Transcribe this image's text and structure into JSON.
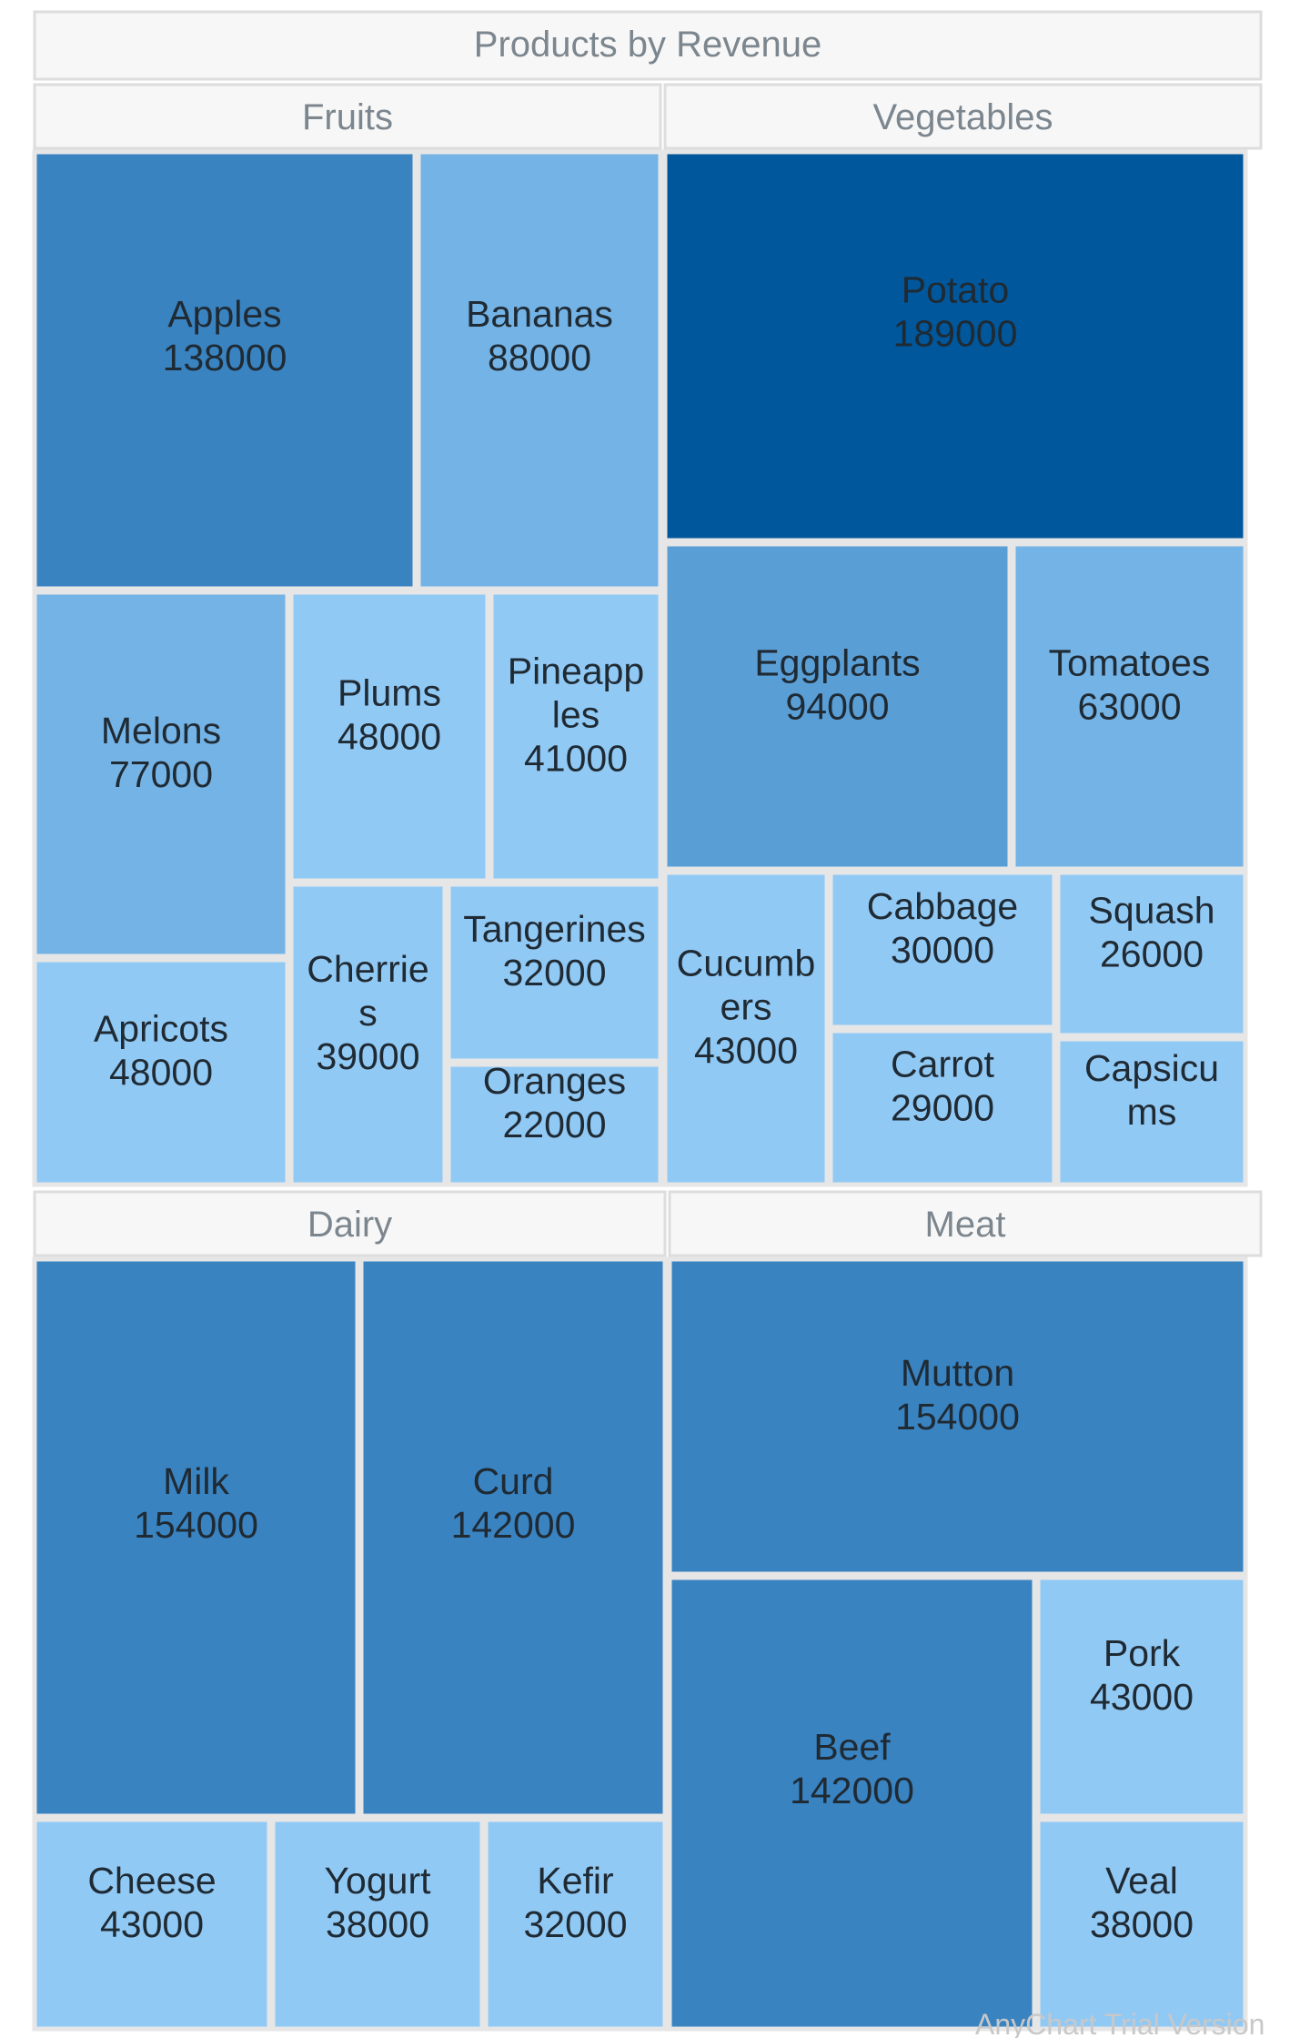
{
  "chart_data": {
    "type": "treemap",
    "title": "Products by Revenue",
    "colors": {
      "darkest": "#00579b",
      "dark": "#3a83c1",
      "medium": "#5a9ed6",
      "light": "#74b3e6",
      "lightest": "#91c9f5",
      "header_fill": "#f7f7f7",
      "header_text": "#7c868e",
      "label_text": "#1f2a33"
    },
    "groups": [
      {
        "name": "Fruits",
        "items": [
          {
            "name": "Apples",
            "label": [
              "Apples",
              "138000"
            ],
            "value": 138000,
            "color": "#3a83c1"
          },
          {
            "name": "Bananas",
            "label": [
              "Bananas",
              "88000"
            ],
            "value": 88000,
            "color": "#74b3e6"
          },
          {
            "name": "Melons",
            "label": [
              "Melons",
              "77000"
            ],
            "value": 77000,
            "color": "#74b3e6"
          },
          {
            "name": "Plums",
            "label": [
              "Plums",
              "48000"
            ],
            "value": 48000,
            "color": "#91c9f5"
          },
          {
            "name": "Pineapples",
            "label": [
              "Pineapp",
              "les",
              "41000"
            ],
            "value": 41000,
            "color": "#91c9f5"
          },
          {
            "name": "Apricots",
            "label": [
              "Apricots",
              "48000"
            ],
            "value": 48000,
            "color": "#91c9f5"
          },
          {
            "name": "Cherries",
            "label": [
              "Cherrie",
              "s",
              "39000"
            ],
            "value": 39000,
            "color": "#91c9f5"
          },
          {
            "name": "Tangerines",
            "label": [
              "Tangerines",
              "32000"
            ],
            "value": 32000,
            "color": "#91c9f5"
          },
          {
            "name": "Oranges",
            "label": [
              "Oranges",
              "22000"
            ],
            "value": 22000,
            "color": "#91c9f5"
          }
        ]
      },
      {
        "name": "Vegetables",
        "items": [
          {
            "name": "Potato",
            "label": [
              "Potato",
              "189000"
            ],
            "value": 189000,
            "color": "#00579b"
          },
          {
            "name": "Eggplants",
            "label": [
              "Eggplants",
              "94000"
            ],
            "value": 94000,
            "color": "#5a9ed6"
          },
          {
            "name": "Tomatoes",
            "label": [
              "Tomatoes",
              "63000"
            ],
            "value": 63000,
            "color": "#74b3e6"
          },
          {
            "name": "Cucumbers",
            "label": [
              "Cucumb",
              "ers",
              "43000"
            ],
            "value": 43000,
            "color": "#91c9f5"
          },
          {
            "name": "Cabbage",
            "label": [
              "Cabbage",
              "30000"
            ],
            "value": 30000,
            "color": "#91c9f5"
          },
          {
            "name": "Squash",
            "label": [
              "Squash",
              "26000"
            ],
            "value": 26000,
            "color": "#91c9f5"
          },
          {
            "name": "Carrot",
            "label": [
              "Carrot",
              "29000"
            ],
            "value": 29000,
            "color": "#91c9f5"
          },
          {
            "name": "Capsicums",
            "label": [
              "Capsicu",
              "ms"
            ],
            "value": null,
            "color": "#91c9f5"
          }
        ]
      },
      {
        "name": "Dairy",
        "items": [
          {
            "name": "Milk",
            "label": [
              "Milk",
              "154000"
            ],
            "value": 154000,
            "color": "#3a83c1"
          },
          {
            "name": "Curd",
            "label": [
              "Curd",
              "142000"
            ],
            "value": 142000,
            "color": "#3a83c1"
          },
          {
            "name": "Cheese",
            "label": [
              "Cheese",
              "43000"
            ],
            "value": 43000,
            "color": "#91c9f5"
          },
          {
            "name": "Yogurt",
            "label": [
              "Yogurt",
              "38000"
            ],
            "value": 38000,
            "color": "#91c9f5"
          },
          {
            "name": "Kefir",
            "label": [
              "Kefir",
              "32000"
            ],
            "value": 32000,
            "color": "#91c9f5"
          }
        ]
      },
      {
        "name": "Meat",
        "items": [
          {
            "name": "Mutton",
            "label": [
              "Mutton",
              "154000"
            ],
            "value": 154000,
            "color": "#3a83c1"
          },
          {
            "name": "Beef",
            "label": [
              "Beef",
              "142000"
            ],
            "value": 142000,
            "color": "#3a83c1"
          },
          {
            "name": "Pork",
            "label": [
              "Pork",
              "43000"
            ],
            "value": 43000,
            "color": "#91c9f5"
          },
          {
            "name": "Veal",
            "label": [
              "Veal",
              "38000"
            ],
            "value": 38000,
            "color": "#91c9f5"
          }
        ]
      }
    ],
    "credit": "AnyChart Trial Version"
  }
}
